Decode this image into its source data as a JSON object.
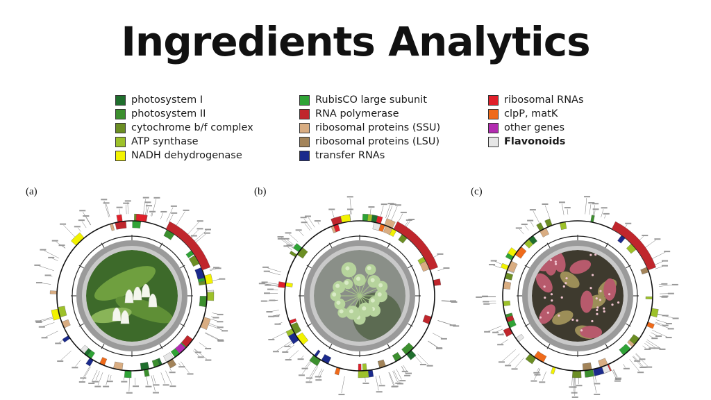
{
  "title": "Ingredients Analytics",
  "legend": {
    "col1": [
      {
        "label": "photosystem I",
        "color": "#1f6e2d"
      },
      {
        "label": "photosystem II",
        "color": "#3c8f2e"
      },
      {
        "label": "cytochrome b/f complex",
        "color": "#6b8e23"
      },
      {
        "label": "ATP synthase",
        "color": "#9dc12a"
      },
      {
        "label": "NADH dehydrogenase",
        "color": "#f2f200"
      }
    ],
    "col2": [
      {
        "label": "RubisCO large subunit",
        "color": "#2fa336"
      },
      {
        "label": "RNA polymerase",
        "color": "#c0262c"
      },
      {
        "label": "ribosomal proteins (SSU)",
        "color": "#d9ad82"
      },
      {
        "label": "ribosomal proteins (LSU)",
        "color": "#a3845a"
      },
      {
        "label": "transfer RNAs",
        "color": "#1b2a8c"
      }
    ],
    "col3": [
      {
        "label": "ribosomal RNAs",
        "color": "#e0202a"
      },
      {
        "label": "clpP, matK",
        "color": "#ef6a1a"
      },
      {
        "label": "other genes",
        "color": "#b32cb0"
      },
      {
        "label": "Flavonoids",
        "color": "#e6e6e6"
      }
    ]
  },
  "panels": [
    {
      "label": "(a)",
      "photo": "white-bell-flower-photo"
    },
    {
      "label": "(b)",
      "photo": "green-umbel-flower-photo"
    },
    {
      "label": "(c)",
      "photo": "red-spotted-leaf-photo"
    }
  ]
}
